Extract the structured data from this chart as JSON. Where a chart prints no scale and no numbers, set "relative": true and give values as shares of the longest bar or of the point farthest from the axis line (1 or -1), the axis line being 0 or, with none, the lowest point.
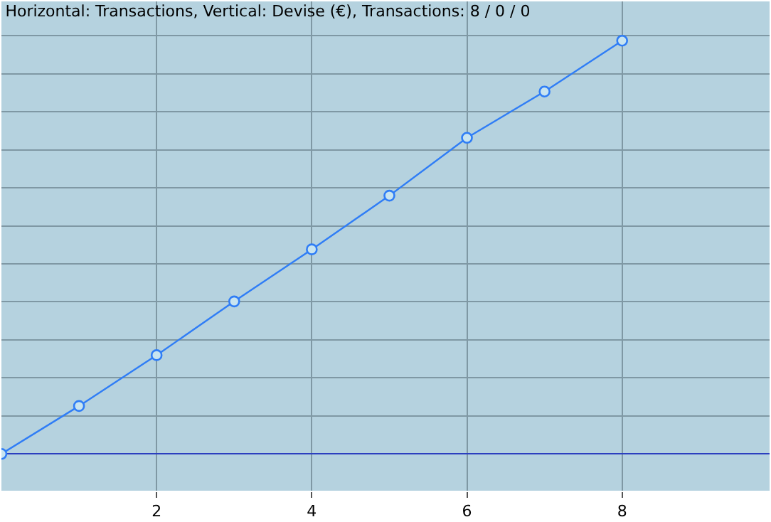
{
  "chart_data": {
    "type": "line",
    "title": "Horizontal: Transactions, Vertical: Devise (€), Transactions: 8 / 0 / 0",
    "relative": true,
    "series": [
      {
        "color": "#2f7df6",
        "x": [
          0,
          1,
          2,
          3,
          4,
          5,
          6,
          7,
          8
        ],
        "values": [
          0,
          0.116,
          0.239,
          0.369,
          0.495,
          0.625,
          0.765,
          0.877,
          1
        ]
      }
    ],
    "xlim": [
      0,
      9.9
    ],
    "xticks": [
      2,
      4,
      6,
      8
    ],
    "grid": true,
    "marker": "circle",
    "line_style": "solid"
  }
}
